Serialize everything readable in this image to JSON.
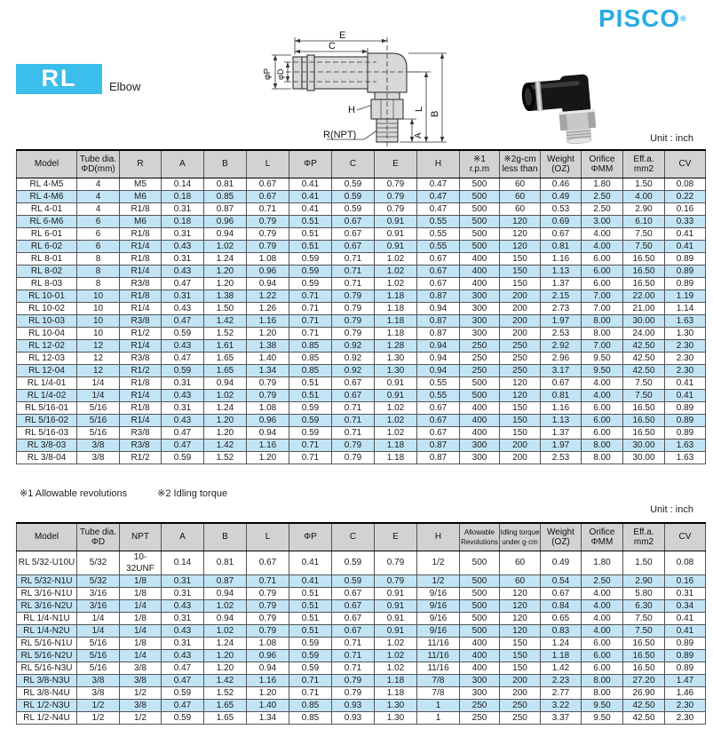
{
  "brand": {
    "name": "PISCO",
    "registered": "®",
    "color": "#29ABE2"
  },
  "product": {
    "series": "RL",
    "type": "Elbow",
    "badge_color": "#3BBEEA"
  },
  "unit_label": "Unit : inch",
  "diagram": {
    "dim_e": "E",
    "dim_c": "C",
    "dim_p": "φP",
    "dim_d": "φD",
    "dim_h": "H",
    "dim_l": "L",
    "dim_b": "B",
    "dim_a": "A",
    "dim_r": "R(NPT)"
  },
  "footnotes": {
    "note1": "※1 Allowable revolutions",
    "note2": "※2 Idling torque"
  },
  "table_metric": {
    "headers": [
      "Model",
      "Tube dia.\nΦD(mm)",
      "R",
      "A",
      "B",
      "L",
      "ΦP",
      "C",
      "E",
      "H",
      "※1\nr.p.m",
      "※2g-cm\nless than",
      "Weight\n(OZ)",
      "Orifice\nΦMM",
      "Eff.a.\nmm2",
      "CV"
    ],
    "rows": [
      [
        "RL 4-M5",
        "4",
        "M5",
        "0.14",
        "0.81",
        "0.67",
        "0.41",
        "0.59",
        "0.79",
        "0.47",
        "500",
        "60",
        "0.46",
        "1.80",
        "1.50",
        "0.08"
      ],
      [
        "RL 4-M6",
        "4",
        "M6",
        "0.18",
        "0.85",
        "0.67",
        "0.41",
        "0.59",
        "0.79",
        "0.47",
        "500",
        "60",
        "0.49",
        "2.50",
        "4.00",
        "0.22"
      ],
      [
        "RL 4-01",
        "4",
        "R1/8",
        "0.31",
        "0.87",
        "0.71",
        "0.41",
        "0.59",
        "0.79",
        "0.47",
        "500",
        "60",
        "0.53",
        "2.50",
        "2.90",
        "0.16"
      ],
      [
        "RL 6-M6",
        "6",
        "M6",
        "0.18",
        "0.96",
        "0.79",
        "0.51",
        "0.67",
        "0.91",
        "0.55",
        "500",
        "120",
        "0.69",
        "3.00",
        "6.10",
        "0.33"
      ],
      [
        "RL 6-01",
        "6",
        "R1/8",
        "0.31",
        "0.94",
        "0.79",
        "0.51",
        "0.67",
        "0.91",
        "0.55",
        "500",
        "120",
        "0.67",
        "4.00",
        "7.50",
        "0.41"
      ],
      [
        "RL 6-02",
        "6",
        "R1/4",
        "0.43",
        "1.02",
        "0.79",
        "0.51",
        "0.67",
        "0.91",
        "0.55",
        "500",
        "120",
        "0.81",
        "4.00",
        "7.50",
        "0.41"
      ],
      [
        "RL 8-01",
        "8",
        "R1/8",
        "0.31",
        "1.24",
        "1.08",
        "0.59",
        "0.71",
        "1.02",
        "0.67",
        "400",
        "150",
        "1.16",
        "6.00",
        "16.50",
        "0.89"
      ],
      [
        "RL 8-02",
        "8",
        "R1/4",
        "0.43",
        "1.20",
        "0.96",
        "0.59",
        "0.71",
        "1.02",
        "0.67",
        "400",
        "150",
        "1.13",
        "6.00",
        "16.50",
        "0.89"
      ],
      [
        "RL 8-03",
        "8",
        "R3/8",
        "0.47",
        "1.20",
        "0.94",
        "0.59",
        "0.71",
        "1.02",
        "0.67",
        "400",
        "150",
        "1.37",
        "6.00",
        "16.50",
        "0.89"
      ],
      [
        "RL 10-01",
        "10",
        "R1/8",
        "0.31",
        "1.38",
        "1.22",
        "0.71",
        "0.79",
        "1.18",
        "0.87",
        "300",
        "200",
        "2.15",
        "7.00",
        "22.00",
        "1.19"
      ],
      [
        "RL 10-02",
        "10",
        "R1/4",
        "0.43",
        "1.50",
        "1.26",
        "0.71",
        "0.79",
        "1.18",
        "0.94",
        "300",
        "200",
        "2.73",
        "7.00",
        "21.00",
        "1.14"
      ],
      [
        "RL 10-03",
        "10",
        "R3/8",
        "0.47",
        "1.42",
        "1.16",
        "0.71",
        "0.79",
        "1.18",
        "0.87",
        "300",
        "200",
        "1.97",
        "8.00",
        "30.00",
        "1.63"
      ],
      [
        "RL 10-04",
        "10",
        "R1/2",
        "0.59",
        "1.52",
        "1.20",
        "0.71",
        "0.79",
        "1.18",
        "0.87",
        "300",
        "200",
        "2.53",
        "8.00",
        "24.00",
        "1.30"
      ],
      [
        "RL 12-02",
        "12",
        "R1/4",
        "0.43",
        "1.61",
        "1.38",
        "0.85",
        "0.92",
        "1.28",
        "0.94",
        "250",
        "250",
        "2.92",
        "7.00",
        "42.50",
        "2.30"
      ],
      [
        "RL 12-03",
        "12",
        "R3/8",
        "0.47",
        "1.65",
        "1.40",
        "0.85",
        "0.92",
        "1.30",
        "0.94",
        "250",
        "250",
        "2.96",
        "9.50",
        "42.50",
        "2.30"
      ],
      [
        "RL 12-04",
        "12",
        "R1/2",
        "0.59",
        "1.65",
        "1.34",
        "0.85",
        "0.92",
        "1.30",
        "0.94",
        "250",
        "250",
        "3.17",
        "9.50",
        "42.50",
        "2.30"
      ],
      [
        "RL 1/4-01",
        "1/4",
        "R1/8",
        "0.31",
        "0.94",
        "0.79",
        "0.51",
        "0.67",
        "0.91",
        "0.55",
        "500",
        "120",
        "0.67",
        "4.00",
        "7.50",
        "0.41"
      ],
      [
        "RL 1/4-02",
        "1/4",
        "R1/4",
        "0.43",
        "1.02",
        "0.79",
        "0.51",
        "0.67",
        "0.91",
        "0.55",
        "500",
        "120",
        "0.81",
        "4.00",
        "7.50",
        "0.41"
      ],
      [
        "RL 5/16-01",
        "5/16",
        "R1/8",
        "0.31",
        "1.24",
        "1.08",
        "0.59",
        "0.71",
        "1.02",
        "0.67",
        "400",
        "150",
        "1.16",
        "6.00",
        "16.50",
        "0.89"
      ],
      [
        "RL 5/16-02",
        "5/16",
        "R1/4",
        "0.43",
        "1.20",
        "0.96",
        "0.59",
        "0.71",
        "1.02",
        "0.67",
        "400",
        "150",
        "1.13",
        "6.00",
        "16.50",
        "0.89"
      ],
      [
        "RL 5/16-03",
        "5/16",
        "R3/8",
        "0.47",
        "1.20",
        "0.94",
        "0.59",
        "0.71",
        "1.02",
        "0.67",
        "400",
        "150",
        "1.37",
        "6.00",
        "16.50",
        "0.89"
      ],
      [
        "RL 3/8-03",
        "3/8",
        "R3/8",
        "0.47",
        "1.42",
        "1.16",
        "0.71",
        "0.79",
        "1.18",
        "0.87",
        "300",
        "200",
        "1.97",
        "8.00",
        "30.00",
        "1.63"
      ],
      [
        "RL 3/8-04",
        "3/8",
        "R1/2",
        "0.59",
        "1.52",
        "1.20",
        "0.71",
        "0.79",
        "1.18",
        "0.87",
        "300",
        "200",
        "2.53",
        "8.00",
        "30.00",
        "1.63"
      ]
    ]
  },
  "table_inch": {
    "headers": [
      "Model",
      "Tube dia.\nΦD",
      "NPT",
      "A",
      "B",
      "L",
      "ΦP",
      "C",
      "E",
      "H",
      "Allowable\nRevolutions",
      "Idling torque\nunder g·cm",
      "Weight\n(OZ)",
      "Orifice\nΦMM",
      "Eff.a.\nmm2",
      "CV"
    ],
    "rows": [
      [
        "RL 5/32-U10U",
        "5/32",
        "10-32UNF",
        "0.14",
        "0.81",
        "0.67",
        "0.41",
        "0.59",
        "0.79",
        "1/2",
        "500",
        "60",
        "0.49",
        "1.80",
        "1.50",
        "0.08"
      ],
      [
        "RL 5/32-N1U",
        "5/32",
        "1/8",
        "0.31",
        "0.87",
        "0.71",
        "0.41",
        "0.59",
        "0.79",
        "1/2",
        "500",
        "60",
        "0.54",
        "2.50",
        "2.90",
        "0.16"
      ],
      [
        "RL 3/16-N1U",
        "3/16",
        "1/8",
        "0.31",
        "0.94",
        "0.79",
        "0.51",
        "0.67",
        "0.91",
        "9/16",
        "500",
        "120",
        "0.67",
        "4.00",
        "5.80",
        "0.31"
      ],
      [
        "RL 3/16-N2U",
        "3/16",
        "1/4",
        "0.43",
        "1.02",
        "0.79",
        "0.51",
        "0.67",
        "0.91",
        "9/16",
        "500",
        "120",
        "0.84",
        "4.00",
        "6.30",
        "0.34"
      ],
      [
        "RL 1/4-N1U",
        "1/4",
        "1/8",
        "0.31",
        "0.94",
        "0.79",
        "0.51",
        "0.67",
        "0.91",
        "9/16",
        "500",
        "120",
        "0.65",
        "4.00",
        "7.50",
        "0.41"
      ],
      [
        "RL 1/4-N2U",
        "1/4",
        "1/4",
        "0.43",
        "1.02",
        "0.79",
        "0.51",
        "0.67",
        "0.91",
        "9/16",
        "500",
        "120",
        "0.83",
        "4.00",
        "7.50",
        "0.41"
      ],
      [
        "RL 5/16-N1U",
        "5/16",
        "1/8",
        "0.31",
        "1.24",
        "1.08",
        "0.59",
        "0.71",
        "1.02",
        "11/16",
        "400",
        "150",
        "1.24",
        "6.00",
        "16.50",
        "0.89"
      ],
      [
        "RL 5/16-N2U",
        "5/16",
        "1/4",
        "0.43",
        "1.20",
        "0.96",
        "0.59",
        "0.71",
        "1.02",
        "11/16",
        "400",
        "150",
        "1.18",
        "6.00",
        "16.50",
        "0.89"
      ],
      [
        "RL 5/16-N3U",
        "5/16",
        "3/8",
        "0.47",
        "1.20",
        "0.94",
        "0.59",
        "0.71",
        "1.02",
        "11/16",
        "400",
        "150",
        "1.42",
        "6.00",
        "16.50",
        "0.89"
      ],
      [
        "RL 3/8-N3U",
        "3/8",
        "3/8",
        "0.47",
        "1.42",
        "1.16",
        "0.71",
        "0.79",
        "1.18",
        "7/8",
        "300",
        "200",
        "2.23",
        "8.00",
        "27.20",
        "1.47"
      ],
      [
        "RL 3/8-N4U",
        "3/8",
        "1/2",
        "0.59",
        "1.52",
        "1.20",
        "0.71",
        "0.79",
        "1.18",
        "7/8",
        "300",
        "200",
        "2.77",
        "8.00",
        "26.90",
        "1.46"
      ],
      [
        "RL 1/2-N3U",
        "1/2",
        "3/8",
        "0.47",
        "1.65",
        "1.40",
        "0.85",
        "0.93",
        "1.30",
        "1",
        "250",
        "250",
        "3.22",
        "9.50",
        "42.50",
        "2.30"
      ],
      [
        "RL 1/2-N4U",
        "1/2",
        "1/2",
        "0.59",
        "1.65",
        "1.34",
        "0.85",
        "0.93",
        "1.30",
        "1",
        "250",
        "250",
        "3.37",
        "9.50",
        "42.50",
        "2.30"
      ]
    ]
  },
  "colors": {
    "brand_blue": "#29ABE2",
    "series_box_blue": "#3BBEEA",
    "row_highlight": "#C2E4F5",
    "header_gray": "#D2D2D2"
  }
}
